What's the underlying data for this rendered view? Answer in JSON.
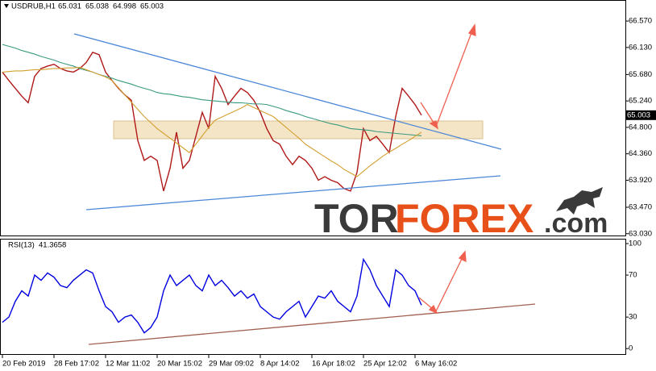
{
  "chart_data": [
    {
      "type": "line",
      "symbol": "USDRUB,H1",
      "ohlc": [
        65.031,
        65.038,
        64.998,
        65.003
      ],
      "watermark": [
        "TOR",
        "FOREX",
        ".com"
      ],
      "ylim": [
        63.0,
        66.88
      ],
      "yticks": [
        {
          "value": 63.03,
          "label": "63.030"
        },
        {
          "value": 63.47,
          "label": "63.470"
        },
        {
          "value": 63.92,
          "label": "63.920"
        },
        {
          "value": 64.36,
          "label": "64.360"
        },
        {
          "value": 64.8,
          "label": "64.800"
        },
        {
          "value": 65.24,
          "label": "65.240"
        },
        {
          "value": 65.68,
          "label": "65.680"
        },
        {
          "value": 66.13,
          "label": "66.130"
        },
        {
          "value": 66.57,
          "label": "66.570"
        }
      ],
      "series": [
        {
          "color": "#b01818",
          "values": [
            65.72,
            65.58,
            65.45,
            65.32,
            65.21,
            65.65,
            65.78,
            65.82,
            65.85,
            65.78,
            65.74,
            65.72,
            65.78,
            65.88,
            66.05,
            66.01,
            65.72,
            65.58,
            65.45,
            65.34,
            65.25,
            64.58,
            64.25,
            64.32,
            64.25,
            63.74,
            64.12,
            64.72,
            64.12,
            64.25,
            64.65,
            65.05,
            64.78,
            65.65,
            65.45,
            65.18,
            65.32,
            65.45,
            65.38,
            65.25,
            65.05,
            64.78,
            64.58,
            64.52,
            64.32,
            64.18,
            64.32,
            64.25,
            64.12,
            63.92,
            63.98,
            63.92,
            63.88,
            63.78,
            63.74,
            64.05,
            64.78,
            64.58,
            64.65,
            64.52,
            64.38,
            64.98,
            65.45,
            65.32,
            65.18,
            65.003
          ]
        },
        {
          "color": "#3a9a80",
          "values": [
            66.18,
            66.15,
            66.12,
            66.08,
            66.05,
            66.02,
            65.98,
            65.95,
            65.92,
            65.88,
            65.85,
            65.82,
            65.78,
            65.75,
            65.72,
            65.68,
            65.65,
            65.62,
            65.58,
            65.55,
            65.52,
            65.48,
            65.45,
            65.42,
            65.38,
            65.36,
            65.35,
            65.33,
            65.31,
            65.3,
            65.28,
            65.26,
            65.25,
            65.24,
            65.23,
            65.22,
            65.21,
            65.21,
            65.2,
            65.19,
            65.19,
            65.18,
            65.15,
            65.12,
            65.08,
            65.05,
            65.02,
            64.98,
            64.95,
            64.92,
            64.89,
            64.86,
            64.84,
            64.81,
            64.78,
            64.77,
            64.76,
            64.75,
            64.73,
            64.72,
            64.71,
            64.7,
            64.69,
            64.68,
            64.67,
            64.66
          ]
        },
        {
          "color": "#d4a030",
          "values": [
            65.72,
            65.73,
            65.74,
            65.74,
            65.75,
            65.76,
            65.76,
            65.77,
            65.78,
            65.78,
            65.79,
            65.79,
            65.8,
            65.76,
            65.72,
            65.68,
            65.64,
            65.58,
            65.46,
            65.34,
            65.22,
            65.1,
            64.98,
            64.88,
            64.78,
            64.7,
            64.62,
            64.54,
            64.46,
            64.38,
            64.52,
            64.66,
            64.8,
            64.92,
            64.97,
            65.02,
            65.07,
            65.12,
            65.18,
            65.13,
            65.08,
            65.03,
            64.98,
            64.89,
            64.8,
            64.71,
            64.62,
            64.52,
            64.45,
            64.38,
            64.31,
            64.24,
            64.18,
            64.1,
            64.04,
            63.98,
            64.07,
            64.16,
            64.24,
            64.32,
            64.39,
            64.45,
            64.52,
            64.58,
            64.65,
            64.72
          ]
        }
      ]
    },
    {
      "type": "line",
      "title": "RSI(13)",
      "categories": [
        "20 Feb 2019",
        null,
        null,
        null,
        null,
        null,
        null,
        null,
        "28 Feb 17:02",
        null,
        null,
        null,
        null,
        null,
        null,
        null,
        "12 Mar 11:02",
        null,
        null,
        null,
        null,
        null,
        null,
        null,
        "20 Mar 15:02",
        null,
        null,
        null,
        null,
        null,
        null,
        null,
        "29 Mar 09:02",
        null,
        null,
        null,
        null,
        null,
        null,
        null,
        "8 Apr 14:02",
        null,
        null,
        null,
        null,
        null,
        null,
        null,
        "16 Apr 18:02",
        null,
        null,
        null,
        null,
        null,
        null,
        null,
        "25 Apr 12:02",
        null,
        null,
        null,
        null,
        null,
        null,
        null,
        "6 May 16:02",
        null
      ],
      "ylim": [
        -6,
        104.6
      ],
      "yticks": [
        0,
        30,
        70,
        100
      ],
      "series": [
        {
          "color": "#0000e0",
          "values": [
            25,
            30,
            45,
            55,
            50,
            70,
            65,
            72,
            68,
            60,
            58,
            65,
            70,
            75,
            72,
            55,
            40,
            35,
            25,
            30,
            32,
            25,
            15,
            20,
            30,
            55,
            70,
            60,
            65,
            70,
            60,
            55,
            70,
            60,
            65,
            58,
            50,
            55,
            48,
            52,
            40,
            35,
            30,
            28,
            35,
            40,
            45,
            30,
            40,
            50,
            48,
            55,
            45,
            40,
            35,
            50,
            85,
            75,
            60,
            50,
            40,
            75,
            70,
            60,
            55,
            41.3658
          ]
        }
      ]
    }
  ]
}
